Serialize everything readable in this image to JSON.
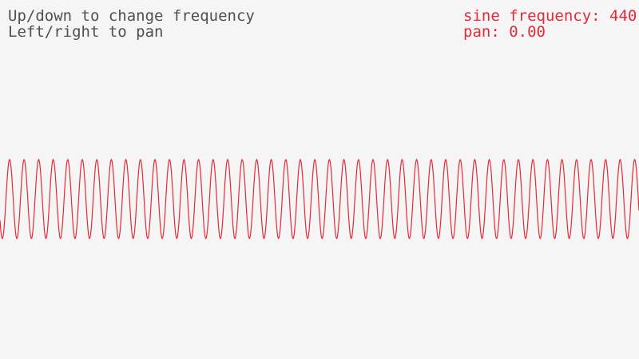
{
  "instructions": {
    "line1": "Up/down to change frequency",
    "line2": "Left/right to pan"
  },
  "status": {
    "frequency_label": "sine frequency: 440",
    "pan_label": "pan: 0.00"
  },
  "waveform": {
    "frequency": 440,
    "pan": 0.0,
    "color": "#e62937"
  },
  "colors": {
    "background": "#f5f5f5",
    "text": "#505050",
    "accent": "#e62937"
  }
}
